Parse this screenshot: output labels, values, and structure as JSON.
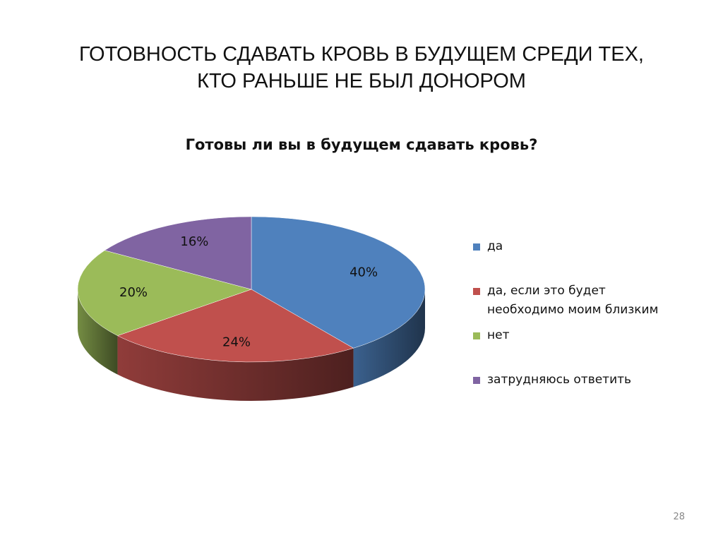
{
  "slide_title_lines": [
    "ГОТОВНОСТЬ СДАВАТЬ КРОВЬ В БУДУЩЕМ СРЕДИ ТЕХ,",
    "КТО РАНЬШЕ НЕ БЫЛ ДОНОРОМ"
  ],
  "page_number": "28",
  "chart_data": {
    "type": "pie",
    "title": "Готовы ли вы в будущем сдавать кровь?",
    "categories": [
      "да",
      "да, если это будет необходимо моим близким",
      "нет",
      "затрудняюсь ответить"
    ],
    "values": [
      40,
      24,
      20,
      16
    ],
    "value_labels": [
      "40%",
      "24%",
      "20%",
      "16%"
    ],
    "colors": [
      "#4f81bd",
      "#c0504d",
      "#9bbb59",
      "#8064a2"
    ],
    "legend": "right"
  }
}
